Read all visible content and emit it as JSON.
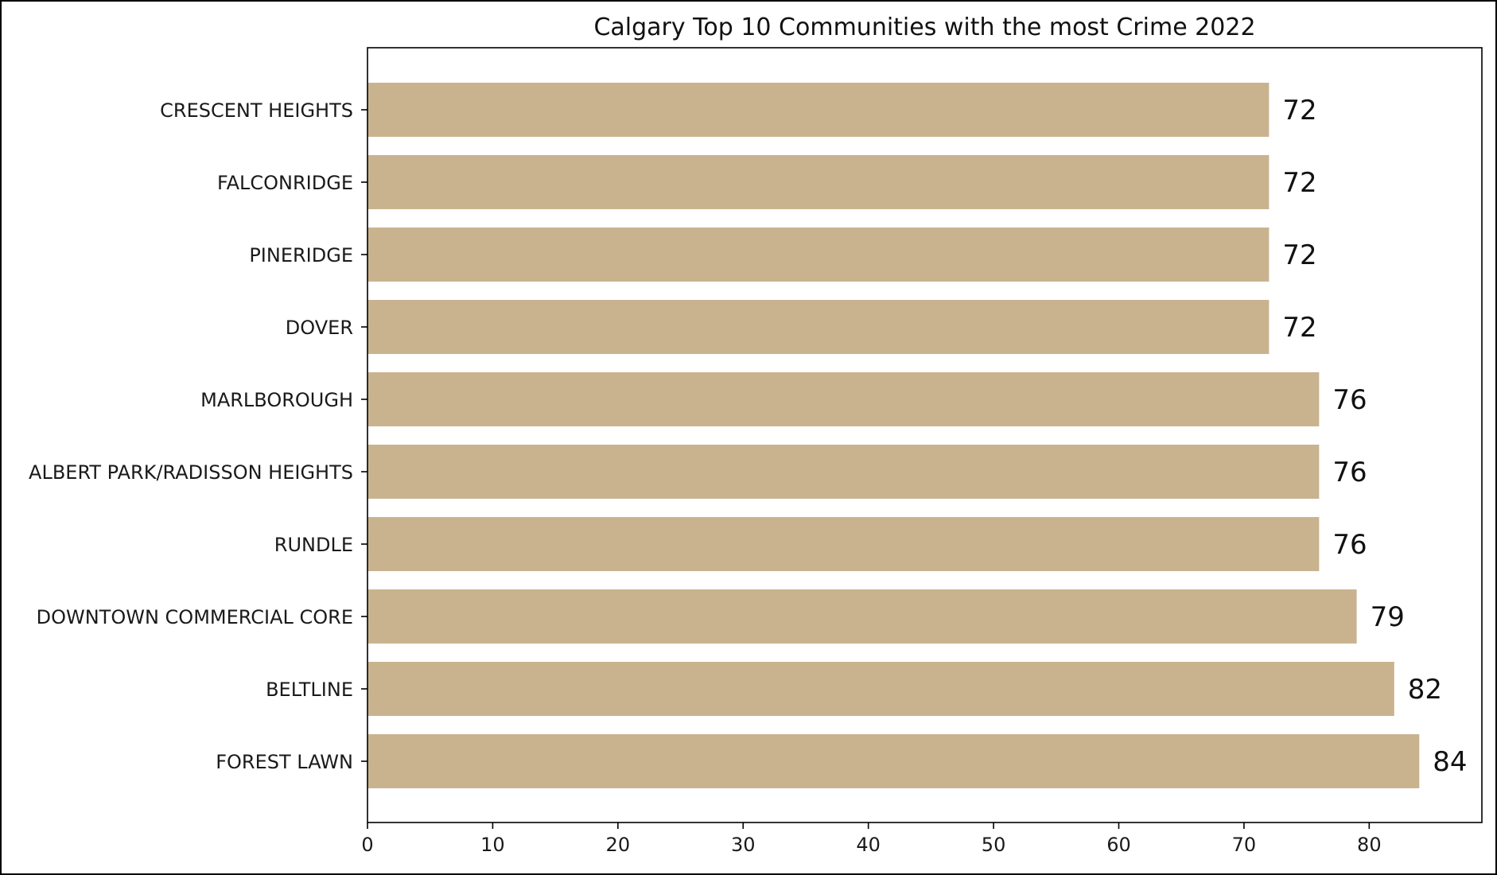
{
  "chart_data": {
    "type": "bar",
    "orientation": "horizontal",
    "title": "Calgary Top 10 Communities with the most Crime 2022",
    "xlabel": "",
    "ylabel": "",
    "categories": [
      "FOREST LAWN",
      "BELTLINE",
      "DOWNTOWN COMMERCIAL CORE",
      "RUNDLE",
      "ALBERT PARK/RADISSON HEIGHTS",
      "MARLBOROUGH",
      "DOVER",
      "PINERIDGE",
      "FALCONRIDGE",
      "CRESCENT HEIGHTS"
    ],
    "values": [
      84,
      82,
      79,
      76,
      76,
      76,
      72,
      72,
      72,
      72
    ],
    "value_labels": [
      "84",
      "82",
      "79",
      "76",
      "76",
      "76",
      "72",
      "72",
      "72",
      "72"
    ],
    "xlim": [
      0,
      89
    ],
    "xticks": [
      0,
      10,
      20,
      30,
      40,
      50,
      60,
      70,
      80
    ],
    "xtick_labels": [
      "0",
      "10",
      "20",
      "30",
      "40",
      "50",
      "60",
      "70",
      "80"
    ],
    "grid": false,
    "legend": "none",
    "bar_color": "#c9b38f"
  }
}
